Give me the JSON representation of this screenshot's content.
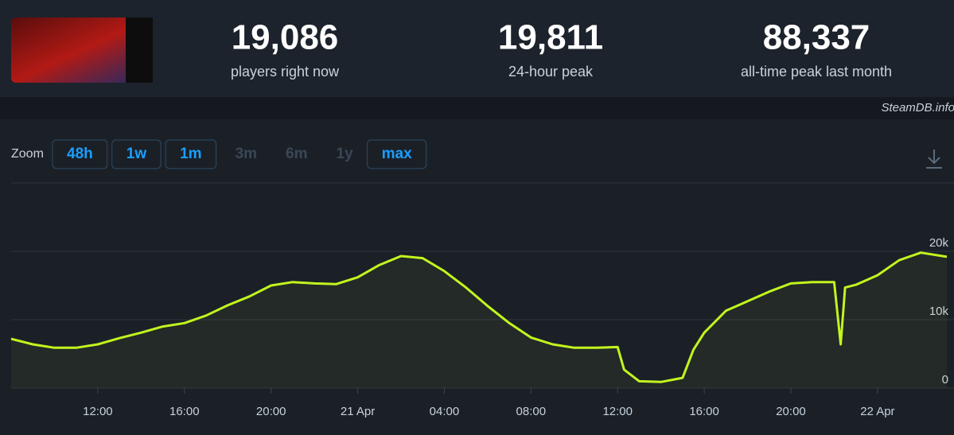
{
  "header": {
    "stats": [
      {
        "value": "19,086",
        "label": "players right now"
      },
      {
        "value": "19,811",
        "label": "24-hour peak"
      },
      {
        "value": "88,337",
        "label": "all-time peak last month"
      }
    ],
    "watermark": "SteamDB.info"
  },
  "zoom": {
    "label": "Zoom",
    "buttons": [
      {
        "text": "48h",
        "enabled": true
      },
      {
        "text": "1w",
        "enabled": true
      },
      {
        "text": "1m",
        "enabled": true
      },
      {
        "text": "3m",
        "enabled": false
      },
      {
        "text": "6m",
        "enabled": false
      },
      {
        "text": "1y",
        "enabled": false
      },
      {
        "text": "max",
        "enabled": true
      }
    ]
  },
  "chart_data": {
    "type": "line",
    "color": "#c2f51e",
    "grid": true,
    "x": [
      8,
      9,
      10,
      11,
      12,
      13,
      14,
      15,
      16,
      17,
      18,
      19,
      20,
      21,
      22,
      23,
      24,
      25,
      26,
      27,
      28,
      29,
      30,
      31,
      32,
      33,
      34,
      35,
      36,
      36.3,
      37,
      38,
      39,
      39.5,
      40,
      41,
      42,
      43,
      44,
      45,
      46,
      46.3,
      46.5,
      47,
      48,
      49,
      50,
      51.2
    ],
    "values": [
      7200,
      6400,
      5900,
      5900,
      6400,
      7300,
      8100,
      9000,
      9500,
      10600,
      12100,
      13400,
      15000,
      15500,
      15300,
      15200,
      16200,
      18000,
      19300,
      19000,
      17100,
      14700,
      12000,
      9500,
      7400,
      6400,
      5900,
      5900,
      6000,
      2700,
      1000,
      900,
      1500,
      5600,
      8100,
      11300,
      12700,
      14100,
      15300,
      15500,
      15500,
      6400,
      14700,
      15100,
      16500,
      18700,
      19800,
      19200
    ],
    "xlim": [
      8,
      51.2
    ],
    "xticks": [
      {
        "value": 12,
        "label": "12:00"
      },
      {
        "value": 16,
        "label": "16:00"
      },
      {
        "value": 20,
        "label": "20:00"
      },
      {
        "value": 24,
        "label": "21 Apr"
      },
      {
        "value": 28,
        "label": "04:00"
      },
      {
        "value": 32,
        "label": "08:00"
      },
      {
        "value": 36,
        "label": "12:00"
      },
      {
        "value": 40,
        "label": "16:00"
      },
      {
        "value": 44,
        "label": "20:00"
      },
      {
        "value": 48,
        "label": "22 Apr"
      }
    ],
    "ylim": [
      0,
      30000
    ],
    "yticks": [
      0,
      {
        "value": 10000,
        "label": "10k"
      },
      {
        "value": 20000,
        "label": "20k"
      }
    ]
  }
}
